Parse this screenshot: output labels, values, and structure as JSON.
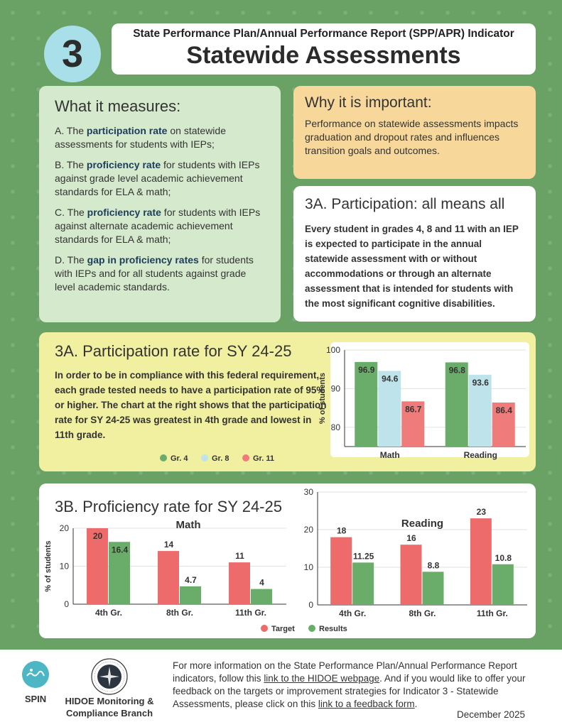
{
  "header": {
    "number": "3",
    "subtitle": "State Performance Plan/Annual Performance Report (SPP/APR) Indicator",
    "title": "Statewide Assessments"
  },
  "measures": {
    "heading": "What it measures:",
    "items": [
      {
        "pre": "A. The ",
        "bold": "participation rate",
        "post": " on statewide assessments for students with IEPs;"
      },
      {
        "pre": "B. The ",
        "bold": "proficiency rate",
        "post": " for students with IEPs against grade level academic achievement standards for ELA & math;"
      },
      {
        "pre": "C. The ",
        "bold": "proficiency rate",
        "post": " for students with IEPs against alternate academic achievement standards for ELA & math;"
      },
      {
        "pre": "D. The ",
        "bold": "gap in proficiency rates",
        "post": " for students with IEPs and for all students against grade level academic standards."
      }
    ]
  },
  "why": {
    "heading": "Why it is important:",
    "body": "Performance on statewide assessments impacts graduation and dropout rates and influences transition goals and outcomes."
  },
  "participation_info": {
    "heading": "3A. Participation: all means all",
    "body": "Every student in grades 4, 8 and 11 with an IEP is expected to participate in the annual statewide assessment with or without accommodations or through an alternate assessment that is intended for students with the most significant cognitive disabilities."
  },
  "participation_rate": {
    "heading": "3A. Participation rate for SY 24-25",
    "body": "In order to be in compliance with this federal requirement, each grade tested needs to have a participation rate of 95% or higher.  The chart at the right shows that the participation rate for SY 24-25 was greatest in 4th grade and lowest in 11th grade."
  },
  "proficiency": {
    "heading": "3B. Proficiency rate for SY 24-25"
  },
  "colors": {
    "gr4": "#6aad6a",
    "gr8": "#bfe3ea",
    "gr11": "#ef7b7b",
    "target": "#ee6b6b",
    "results": "#6aad6a"
  },
  "chart_data": [
    {
      "type": "bar",
      "categories": [
        "Math",
        "Reading"
      ],
      "series": [
        {
          "name": "Gr. 4",
          "values": [
            96.9,
            96.8
          ]
        },
        {
          "name": "Gr. 8",
          "values": [
            94.6,
            93.6
          ]
        },
        {
          "name": "Gr. 11",
          "values": [
            86.7,
            86.4
          ]
        }
      ],
      "data_labels": [
        [
          "96.9",
          "96.8"
        ],
        [
          "94.6",
          "93.6"
        ],
        [
          "86.7",
          "86.4"
        ]
      ],
      "ylabel": "% of students",
      "ylim": [
        75,
        100
      ],
      "yticks": [
        "80",
        "90",
        "100"
      ],
      "grid": true,
      "legend": "bottom"
    },
    {
      "type": "bar",
      "title": "Math",
      "categories": [
        "4th Gr.",
        "8th Gr.",
        "11th Gr."
      ],
      "series": [
        {
          "name": "Target",
          "values": [
            20,
            14,
            11
          ]
        },
        {
          "name": "Results",
          "values": [
            16.4,
            4.7,
            4
          ]
        }
      ],
      "data_labels": [
        [
          "20",
          "14",
          "11"
        ],
        [
          "16.4",
          "4.7",
          "4"
        ]
      ],
      "ylabel": "% of students",
      "ylim": [
        0,
        20
      ],
      "yticks": [
        "0",
        "10",
        "20"
      ],
      "grid": true
    },
    {
      "type": "bar",
      "title": "Reading",
      "categories": [
        "4th Gr.",
        "8th Gr.",
        "11th Gr."
      ],
      "series": [
        {
          "name": "Target",
          "values": [
            18,
            16,
            23
          ]
        },
        {
          "name": "Results",
          "values": [
            11.25,
            8.8,
            10.8
          ]
        }
      ],
      "data_labels": [
        [
          "18",
          "16",
          "23"
        ],
        [
          "11.25",
          "8.8",
          "10.8"
        ]
      ],
      "ylim": [
        0,
        30
      ],
      "yticks": [
        "0",
        "10",
        "20",
        "30"
      ],
      "grid": true,
      "legend": "bottom"
    }
  ],
  "footer": {
    "spin_label": "SPIN",
    "branch_label_1": "HIDOE Monitoring &",
    "branch_label_2": "Compliance Branch",
    "text_1": "For more information on the State Performance Plan/Annual Performance Report indicators, follow this ",
    "link_1": "link to the HIDOE webpage",
    "text_2": ".  And if you would like to offer your feedback on the targets or improvement strategies for Indicator 3 - Statewide Assessments, please click on this ",
    "link_2": "link to a feedback form",
    "text_3": ".",
    "date": "December 2025"
  }
}
